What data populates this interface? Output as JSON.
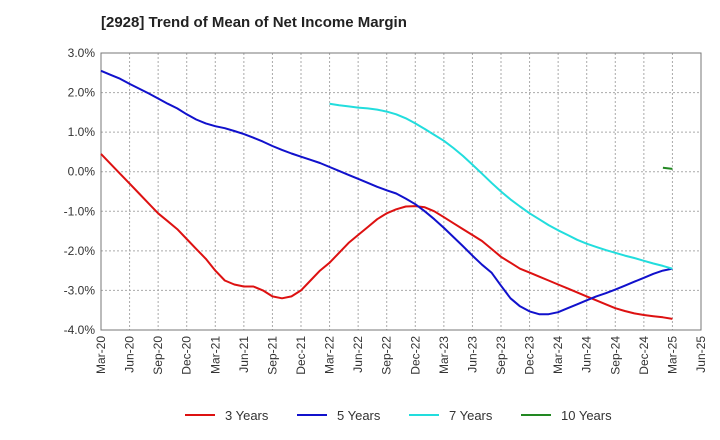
{
  "title": "[2928]  Trend of Mean of Net Income Margin",
  "chart_data": {
    "type": "line",
    "title": "[2928]  Trend of Mean of Net Income Margin",
    "xlabel": "",
    "ylabel": "",
    "ylim": [
      -4.0,
      3.0
    ],
    "y_ticks": [
      3.0,
      2.0,
      1.0,
      0.0,
      -1.0,
      -2.0,
      -3.0,
      -4.0
    ],
    "y_tick_labels": [
      "3.0%",
      "2.0%",
      "1.0%",
      "0.0%",
      "-1.0%",
      "-2.0%",
      "-3.0%",
      "-4.0%"
    ],
    "x_range": [
      "Mar-20",
      "Jun-25"
    ],
    "x_ticks": [
      "Mar-20",
      "Jun-20",
      "Sep-20",
      "Dec-20",
      "Mar-21",
      "Jun-21",
      "Sep-21",
      "Dec-21",
      "Mar-22",
      "Jun-22",
      "Sep-22",
      "Dec-22",
      "Mar-23",
      "Jun-23",
      "Sep-23",
      "Dec-23",
      "Mar-24",
      "Jun-24",
      "Sep-24",
      "Dec-24",
      "Mar-25",
      "Jun-25"
    ],
    "grid": true,
    "legend_position": "bottom",
    "series": [
      {
        "name": "3 Years",
        "color": "#dd1111",
        "points": [
          [
            "Mar-20",
            0.45
          ],
          [
            "Apr-20",
            0.2
          ],
          [
            "May-20",
            -0.05
          ],
          [
            "Jun-20",
            -0.3
          ],
          [
            "Jul-20",
            -0.55
          ],
          [
            "Aug-20",
            -0.8
          ],
          [
            "Sep-20",
            -1.05
          ],
          [
            "Oct-20",
            -1.25
          ],
          [
            "Nov-20",
            -1.45
          ],
          [
            "Dec-20",
            -1.7
          ],
          [
            "Jan-21",
            -1.95
          ],
          [
            "Feb-21",
            -2.2
          ],
          [
            "Mar-21",
            -2.5
          ],
          [
            "Apr-21",
            -2.75
          ],
          [
            "May-21",
            -2.85
          ],
          [
            "Jun-21",
            -2.9
          ],
          [
            "Jul-21",
            -2.9
          ],
          [
            "Aug-21",
            -3.0
          ],
          [
            "Sep-21",
            -3.15
          ],
          [
            "Oct-21",
            -3.2
          ],
          [
            "Nov-21",
            -3.15
          ],
          [
            "Dec-21",
            -3.0
          ],
          [
            "Jan-22",
            -2.75
          ],
          [
            "Feb-22",
            -2.5
          ],
          [
            "Mar-22",
            -2.3
          ],
          [
            "Apr-22",
            -2.05
          ],
          [
            "May-22",
            -1.8
          ],
          [
            "Jun-22",
            -1.6
          ],
          [
            "Jul-22",
            -1.4
          ],
          [
            "Aug-22",
            -1.2
          ],
          [
            "Sep-22",
            -1.05
          ],
          [
            "Oct-22",
            -0.95
          ],
          [
            "Nov-22",
            -0.88
          ],
          [
            "Dec-22",
            -0.87
          ],
          [
            "Jan-23",
            -0.9
          ],
          [
            "Feb-23",
            -1.0
          ],
          [
            "Mar-23",
            -1.15
          ],
          [
            "Apr-23",
            -1.3
          ],
          [
            "May-23",
            -1.45
          ],
          [
            "Jun-23",
            -1.6
          ],
          [
            "Jul-23",
            -1.75
          ],
          [
            "Aug-23",
            -1.95
          ],
          [
            "Sep-23",
            -2.15
          ],
          [
            "Oct-23",
            -2.3
          ],
          [
            "Nov-23",
            -2.45
          ],
          [
            "Dec-23",
            -2.55
          ],
          [
            "Jan-24",
            -2.65
          ],
          [
            "Feb-24",
            -2.75
          ],
          [
            "Mar-24",
            -2.85
          ],
          [
            "Apr-24",
            -2.95
          ],
          [
            "May-24",
            -3.05
          ],
          [
            "Jun-24",
            -3.15
          ],
          [
            "Jul-24",
            -3.25
          ],
          [
            "Aug-24",
            -3.35
          ],
          [
            "Sep-24",
            -3.45
          ],
          [
            "Oct-24",
            -3.52
          ],
          [
            "Nov-24",
            -3.58
          ],
          [
            "Dec-24",
            -3.62
          ],
          [
            "Jan-25",
            -3.65
          ],
          [
            "Feb-25",
            -3.68
          ],
          [
            "Mar-25",
            -3.72
          ]
        ]
      },
      {
        "name": "5 Years",
        "color": "#1111cc",
        "points": [
          [
            "Mar-20",
            2.55
          ],
          [
            "Apr-20",
            2.45
          ],
          [
            "May-20",
            2.35
          ],
          [
            "Jun-20",
            2.22
          ],
          [
            "Jul-20",
            2.1
          ],
          [
            "Aug-20",
            1.98
          ],
          [
            "Sep-20",
            1.85
          ],
          [
            "Oct-20",
            1.72
          ],
          [
            "Nov-20",
            1.6
          ],
          [
            "Dec-20",
            1.45
          ],
          [
            "Jan-21",
            1.32
          ],
          [
            "Feb-21",
            1.22
          ],
          [
            "Mar-21",
            1.15
          ],
          [
            "Apr-21",
            1.1
          ],
          [
            "May-21",
            1.03
          ],
          [
            "Jun-21",
            0.95
          ],
          [
            "Jul-21",
            0.86
          ],
          [
            "Aug-21",
            0.76
          ],
          [
            "Sep-21",
            0.65
          ],
          [
            "Oct-21",
            0.55
          ],
          [
            "Nov-21",
            0.46
          ],
          [
            "Dec-21",
            0.38
          ],
          [
            "Jan-22",
            0.3
          ],
          [
            "Feb-22",
            0.22
          ],
          [
            "Mar-22",
            0.12
          ],
          [
            "Apr-22",
            0.02
          ],
          [
            "May-22",
            -0.08
          ],
          [
            "Jun-22",
            -0.18
          ],
          [
            "Jul-22",
            -0.28
          ],
          [
            "Aug-22",
            -0.38
          ],
          [
            "Sep-22",
            -0.47
          ],
          [
            "Oct-22",
            -0.55
          ],
          [
            "Nov-22",
            -0.68
          ],
          [
            "Dec-22",
            -0.82
          ],
          [
            "Jan-23",
            -1.0
          ],
          [
            "Feb-23",
            -1.2
          ],
          [
            "Mar-23",
            -1.42
          ],
          [
            "Apr-23",
            -1.65
          ],
          [
            "May-23",
            -1.88
          ],
          [
            "Jun-23",
            -2.12
          ],
          [
            "Jul-23",
            -2.35
          ],
          [
            "Aug-23",
            -2.55
          ],
          [
            "Sep-23",
            -2.88
          ],
          [
            "Oct-23",
            -3.2
          ],
          [
            "Nov-23",
            -3.4
          ],
          [
            "Dec-23",
            -3.53
          ],
          [
            "Jan-24",
            -3.6
          ],
          [
            "Feb-24",
            -3.6
          ],
          [
            "Mar-24",
            -3.55
          ],
          [
            "Apr-24",
            -3.45
          ],
          [
            "May-24",
            -3.35
          ],
          [
            "Jun-24",
            -3.25
          ],
          [
            "Jul-24",
            -3.15
          ],
          [
            "Aug-24",
            -3.07
          ],
          [
            "Sep-24",
            -2.98
          ],
          [
            "Oct-24",
            -2.88
          ],
          [
            "Nov-24",
            -2.78
          ],
          [
            "Dec-24",
            -2.68
          ],
          [
            "Jan-25",
            -2.58
          ],
          [
            "Feb-25",
            -2.5
          ],
          [
            "Mar-25",
            -2.45
          ]
        ]
      },
      {
        "name": "7 Years",
        "color": "#22dddd",
        "points": [
          [
            "Mar-22",
            1.72
          ],
          [
            "Apr-22",
            1.68
          ],
          [
            "May-22",
            1.65
          ],
          [
            "Jun-22",
            1.62
          ],
          [
            "Jul-22",
            1.6
          ],
          [
            "Aug-22",
            1.57
          ],
          [
            "Sep-22",
            1.52
          ],
          [
            "Oct-22",
            1.45
          ],
          [
            "Nov-22",
            1.35
          ],
          [
            "Dec-22",
            1.22
          ],
          [
            "Jan-23",
            1.08
          ],
          [
            "Feb-23",
            0.93
          ],
          [
            "Mar-23",
            0.78
          ],
          [
            "Apr-23",
            0.6
          ],
          [
            "May-23",
            0.4
          ],
          [
            "Jun-23",
            0.18
          ],
          [
            "Jul-23",
            -0.05
          ],
          [
            "Aug-23",
            -0.28
          ],
          [
            "Sep-23",
            -0.5
          ],
          [
            "Oct-23",
            -0.7
          ],
          [
            "Nov-23",
            -0.88
          ],
          [
            "Dec-23",
            -1.05
          ],
          [
            "Jan-24",
            -1.2
          ],
          [
            "Feb-24",
            -1.35
          ],
          [
            "Mar-24",
            -1.48
          ],
          [
            "Apr-24",
            -1.6
          ],
          [
            "May-24",
            -1.72
          ],
          [
            "Jun-24",
            -1.82
          ],
          [
            "Jul-24",
            -1.9
          ],
          [
            "Aug-24",
            -1.98
          ],
          [
            "Sep-24",
            -2.05
          ],
          [
            "Oct-24",
            -2.12
          ],
          [
            "Nov-24",
            -2.18
          ],
          [
            "Dec-24",
            -2.25
          ],
          [
            "Jan-25",
            -2.32
          ],
          [
            "Feb-25",
            -2.38
          ],
          [
            "Mar-25",
            -2.45
          ]
        ]
      },
      {
        "name": "10 Years",
        "color": "#228822",
        "points": [
          [
            "Feb-25",
            0.1
          ],
          [
            "Mar-25",
            0.07
          ]
        ]
      }
    ]
  }
}
